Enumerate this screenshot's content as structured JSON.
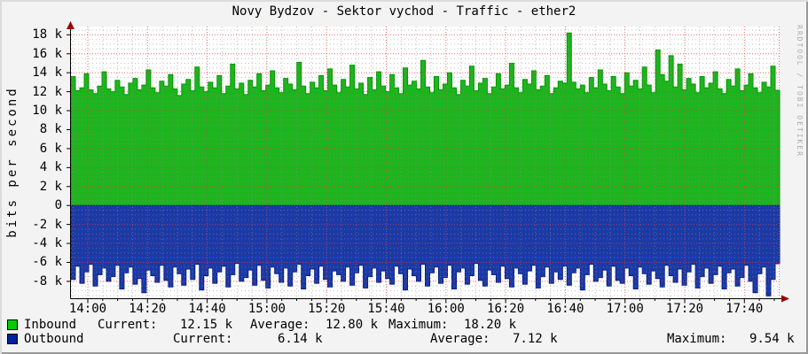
{
  "title": "Novy Bydzov - Sektor vychod - Traffic - ether2",
  "y_axis_label": "bits per second",
  "watermark": "RRDTOOL / TOBI OETIKER",
  "colors": {
    "canvas_bg": "#F3F3F3",
    "plot_bg": "#FFFFFF",
    "inbound_area": "#1EB41E",
    "inbound_line": "#009900",
    "inbound_swatch": "#00CC00",
    "outbound_area": "#1C3AA6",
    "outbound_line": "#001E8C",
    "outbound_swatch": "#0021A0",
    "grid_major": "rgba(224,62,62,0.75)",
    "grid_minor": "rgba(140,140,140,0.55)",
    "axis": "#000000",
    "arrow": "#990000"
  },
  "y_ticks": [
    {
      "label": "18 k",
      "value": 18
    },
    {
      "label": "16 k",
      "value": 16
    },
    {
      "label": "14 k",
      "value": 14
    },
    {
      "label": "12 k",
      "value": 12
    },
    {
      "label": "10 k",
      "value": 10
    },
    {
      "label": "8 k",
      "value": 8
    },
    {
      "label": "6 k",
      "value": 6
    },
    {
      "label": "4 k",
      "value": 4
    },
    {
      "label": "2 k",
      "value": 2
    },
    {
      "label": "0",
      "value": 0
    },
    {
      "label": "-2 k",
      "value": -2
    },
    {
      "label": "-4 k",
      "value": -4
    },
    {
      "label": "-6 k",
      "value": -6
    },
    {
      "label": "-8 k",
      "value": -8
    }
  ],
  "x_ticks": [
    "14:00",
    "14:20",
    "14:40",
    "15:00",
    "15:20",
    "15:40",
    "16:00",
    "16:20",
    "16:40",
    "17:00",
    "17:20",
    "17:40"
  ],
  "legend": {
    "rows": [
      {
        "label": "Inbound",
        "current_label": "Current:",
        "current": "12.15 k",
        "average_label": "Average:",
        "average": "12.80 k",
        "maximum_label": "Maximum:",
        "maximum": "18.20 k"
      },
      {
        "label": "Outbound",
        "current_label": "Current:",
        "current": "6.14 k",
        "average_label": "Average:",
        "average": "7.12 k",
        "maximum_label": "Maximum:",
        "maximum": "9.54 k"
      }
    ]
  },
  "chart_data": {
    "type": "area",
    "title": "Novy Bydzov - Sektor vychod - Traffic - ether2",
    "ylabel": "bits per second",
    "unit": "k = 1000 bits/s",
    "ylim_k": [
      -9.8,
      18.9
    ],
    "x_window": [
      "13:54",
      "17:52"
    ],
    "x_tick_labels": [
      "14:00",
      "14:20",
      "14:40",
      "15:00",
      "15:20",
      "15:40",
      "16:00",
      "16:20",
      "16:40",
      "17:00",
      "17:20",
      "17:40"
    ],
    "grid": {
      "major_y_step_k": 2,
      "minor_y_step_k": 0.5,
      "major_x_step_min": 20,
      "minor_x_step_min": 5
    },
    "legend_position": "bottom",
    "series": [
      {
        "name": "Inbound",
        "color": "#00CC00",
        "plotted": "positive area above zero",
        "stats": {
          "current_k": 12.15,
          "average_k": 12.8,
          "maximum_k": 18.2
        },
        "values_kbps": [
          13.6,
          12.1,
          12.4,
          13.9,
          12.2,
          11.8,
          12.6,
          14.1,
          12.3,
          12.0,
          13.2,
          12.5,
          11.7,
          12.9,
          13.4,
          12.2,
          12.7,
          14.3,
          12.4,
          11.9,
          13.1,
          12.6,
          13.8,
          12.3,
          11.6,
          12.8,
          13.3,
          12.1,
          14.6,
          12.5,
          12.0,
          13.0,
          12.4,
          13.7,
          11.8,
          12.6,
          14.9,
          12.3,
          12.9,
          11.7,
          13.2,
          12.5,
          13.9,
          12.1,
          12.7,
          14.2,
          12.4,
          11.9,
          13.4,
          12.8,
          12.2,
          15.1,
          12.6,
          11.8,
          13.0,
          12.4,
          13.7,
          12.1,
          14.4,
          12.7,
          11.9,
          13.3,
          12.5,
          14.8,
          12.3,
          12.9,
          11.7,
          13.5,
          12.2,
          14.1,
          12.6,
          12.0,
          13.8,
          12.4,
          11.8,
          14.5,
          12.7,
          13.1,
          12.3,
          15.3,
          12.5,
          11.9,
          13.6,
          12.2,
          12.8,
          14.0,
          12.4,
          11.7,
          13.2,
          12.6,
          14.7,
          12.1,
          12.9,
          13.4,
          11.8,
          12.5,
          13.9,
          12.3,
          12.7,
          15.0,
          12.4,
          11.9,
          13.3,
          12.8,
          14.2,
          12.2,
          12.6,
          13.7,
          11.8,
          12.4,
          13.1,
          12.9,
          18.2,
          13.0,
          12.3,
          12.7,
          11.9,
          13.5,
          12.4,
          14.3,
          12.8,
          12.1,
          13.6,
          12.5,
          11.8,
          14.0,
          12.6,
          13.2,
          12.3,
          14.6,
          12.7,
          11.9,
          16.4,
          13.8,
          13.1,
          15.8,
          12.5,
          14.9,
          12.2,
          13.4,
          12.8,
          11.9,
          13.6,
          12.4,
          12.9,
          14.1,
          12.3,
          11.8,
          13.3,
          12.6,
          14.4,
          12.1,
          12.7,
          13.9,
          12.4,
          11.9,
          13.0,
          12.5,
          14.7,
          12.15
        ]
      },
      {
        "name": "Outbound",
        "color": "#0021A0",
        "plotted": "negative area below zero",
        "stats": {
          "current_k": 6.14,
          "average_k": 7.12,
          "maximum_k": 9.54
        },
        "values_kbps": [
          7.8,
          6.4,
          8.2,
          7.0,
          6.2,
          8.5,
          7.3,
          6.6,
          8.0,
          7.5,
          6.3,
          8.8,
          7.1,
          6.5,
          8.3,
          7.7,
          9.2,
          6.8,
          7.4,
          8.1,
          6.3,
          7.9,
          8.6,
          6.5,
          7.2,
          8.4,
          6.7,
          7.8,
          6.2,
          8.9,
          7.4,
          6.6,
          8.2,
          7.0,
          6.4,
          8.6,
          7.3,
          6.1,
          8.0,
          7.6,
          6.8,
          8.4,
          6.3,
          7.9,
          8.7,
          6.5,
          7.2,
          8.1,
          6.6,
          8.5,
          7.0,
          6.2,
          8.8,
          7.4,
          6.7,
          8.2,
          6.4,
          7.8,
          8.6,
          6.9,
          7.3,
          8.0,
          6.5,
          8.4,
          7.1,
          6.3,
          8.7,
          7.5,
          6.6,
          8.1,
          6.9,
          7.7,
          8.3,
          6.4,
          7.2,
          8.9,
          6.7,
          7.4,
          8.0,
          6.2,
          8.5,
          7.1,
          6.5,
          8.2,
          7.6,
          6.3,
          8.8,
          7.0,
          6.6,
          8.3,
          7.4,
          6.1,
          7.9,
          8.5,
          6.8,
          7.3,
          8.1,
          6.4,
          7.7,
          8.6,
          6.6,
          7.2,
          8.3,
          6.9,
          6.3,
          8.7,
          7.5,
          6.5,
          8.2,
          7.0,
          7.8,
          6.4,
          8.4,
          7.1,
          6.6,
          8.9,
          7.3,
          6.2,
          8.0,
          7.6,
          6.8,
          8.5,
          6.4,
          7.9,
          8.2,
          6.6,
          7.4,
          8.8,
          6.5,
          7.2,
          8.3,
          6.9,
          7.7,
          8.6,
          6.3,
          7.4,
          8.1,
          6.7,
          8.4,
          7.0,
          6.2,
          8.7,
          7.5,
          6.6,
          8.2,
          7.3,
          6.4,
          8.8,
          7.1,
          6.7,
          8.5,
          7.6,
          6.3,
          8.0,
          9.2,
          7.2,
          6.5,
          9.54,
          7.8,
          6.14
        ]
      }
    ]
  }
}
